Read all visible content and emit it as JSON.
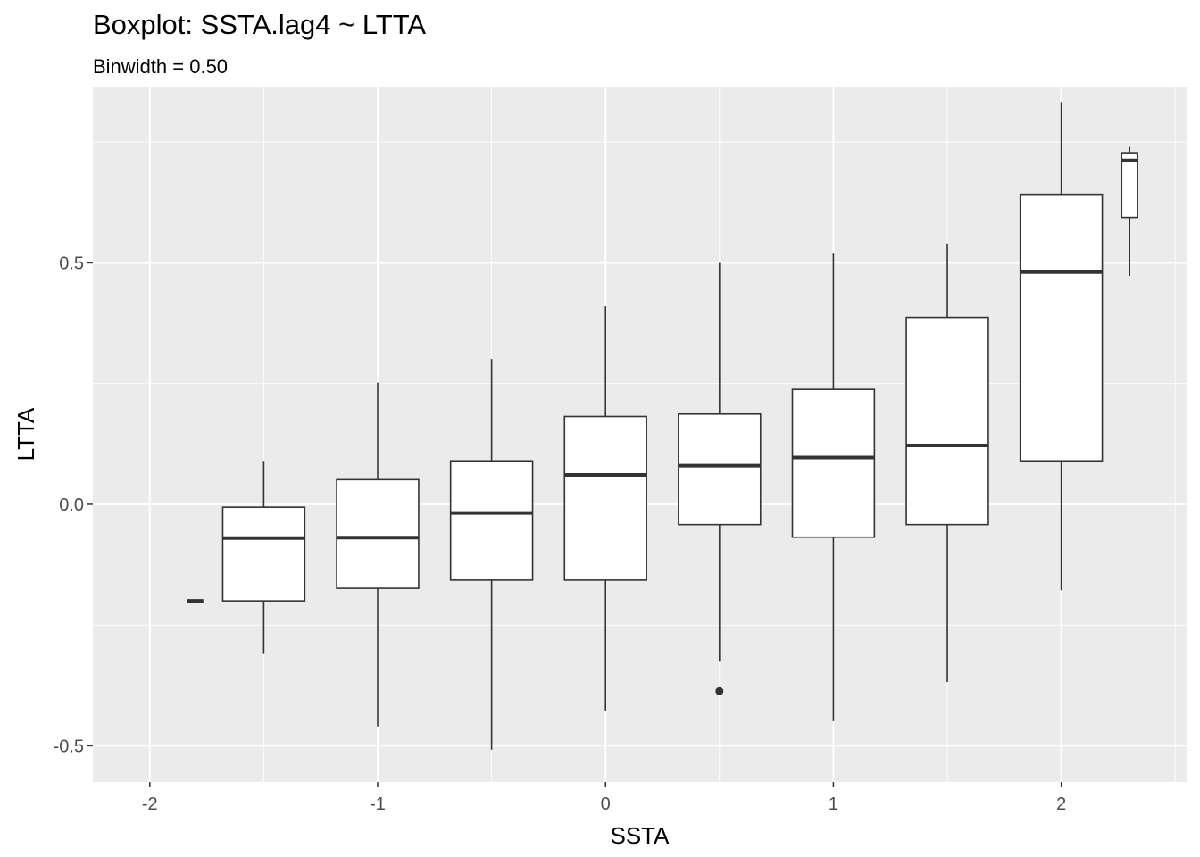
{
  "chart_data": {
    "type": "boxplot",
    "title": "Boxplot: SSTA.lag4 ~ LTTA",
    "subtitle": "Binwidth = 0.50",
    "xlabel": "SSTA",
    "ylabel": "LTTA",
    "xlim": [
      -2.25,
      2.55
    ],
    "ylim": [
      -0.575,
      0.865
    ],
    "x_ticks": [
      -2,
      -1,
      0,
      1,
      2
    ],
    "x_tick_labels": [
      "-2",
      "-1",
      "0",
      "1",
      "2"
    ],
    "y_ticks": [
      -0.5,
      0.0,
      0.5
    ],
    "y_tick_labels": [
      "-0.5",
      "0.0",
      "0.5"
    ],
    "grid": true,
    "boxes": [
      {
        "x": -1.8,
        "width": 0.07,
        "whisker_low": -0.2,
        "q1": -0.2,
        "median": -0.2,
        "q3": -0.2,
        "whisker_high": -0.2,
        "outliers": []
      },
      {
        "x": -1.5,
        "width": 0.36,
        "whisker_low": -0.31,
        "q1": -0.2,
        "median": -0.07,
        "q3": -0.006,
        "whisker_high": 0.09,
        "outliers": []
      },
      {
        "x": -1.0,
        "width": 0.36,
        "whisker_low": -0.46,
        "q1": -0.174,
        "median": -0.069,
        "q3": 0.051,
        "whisker_high": 0.252,
        "outliers": []
      },
      {
        "x": -0.5,
        "width": 0.36,
        "whisker_low": -0.508,
        "q1": -0.157,
        "median": -0.018,
        "q3": 0.09,
        "whisker_high": 0.301,
        "outliers": []
      },
      {
        "x": 0.0,
        "width": 0.36,
        "whisker_low": -0.427,
        "q1": -0.157,
        "median": 0.061,
        "q3": 0.182,
        "whisker_high": 0.41,
        "outliers": []
      },
      {
        "x": 0.5,
        "width": 0.36,
        "whisker_low": -0.326,
        "q1": -0.042,
        "median": 0.08,
        "q3": 0.187,
        "whisker_high": 0.5,
        "outliers": [
          -0.387
        ]
      },
      {
        "x": 1.0,
        "width": 0.36,
        "whisker_low": -0.449,
        "q1": -0.068,
        "median": 0.097,
        "q3": 0.238,
        "whisker_high": 0.521,
        "outliers": []
      },
      {
        "x": 1.5,
        "width": 0.36,
        "whisker_low": -0.368,
        "q1": -0.042,
        "median": 0.122,
        "q3": 0.387,
        "whisker_high": 0.54,
        "outliers": []
      },
      {
        "x": 2.0,
        "width": 0.36,
        "whisker_low": -0.178,
        "q1": 0.09,
        "median": 0.481,
        "q3": 0.642,
        "whisker_high": 0.833,
        "outliers": []
      },
      {
        "x": 2.3,
        "width": 0.07,
        "whisker_low": 0.473,
        "q1": 0.594,
        "median": 0.712,
        "q3": 0.728,
        "whisker_high": 0.74,
        "outliers": []
      }
    ],
    "colors": {
      "panel_bg": "#ebebeb",
      "grid_major": "#ffffff",
      "box_fill": "#ffffff",
      "box_stroke": "#333333",
      "tick_label": "#4d4d4d"
    }
  }
}
